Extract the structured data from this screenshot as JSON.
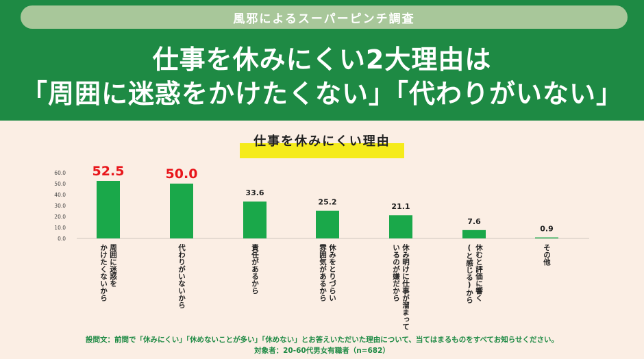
{
  "header": {
    "pill": "風邪によるスーパーピンチ調査",
    "headline_line1": "仕事を休みにくい2大理由は",
    "headline_line2": "「周囲に迷惑をかけたくない」「代わりがいない」"
  },
  "chart_data": {
    "type": "bar",
    "title": "仕事を休みにくい理由",
    "categories": [
      "周囲に迷惑を\nかけたくないから",
      "代わりがいないから",
      "責任があるから",
      "休みをとりづらい\n雰囲気があるから",
      "休み明けに仕事が溜まって\nいるのが嫌だから",
      "休むと評価に響く\n(と感じる)から",
      "その他"
    ],
    "values": [
      52.5,
      50.0,
      33.6,
      25.2,
      21.1,
      7.6,
      0.9
    ],
    "value_labels": [
      "52.5",
      "50.0",
      "33.6",
      "25.2",
      "21.1",
      "7.6",
      "0.9"
    ],
    "highlighted": [
      true,
      true,
      false,
      false,
      false,
      false,
      false
    ],
    "y_ticks": [
      "60.0",
      "50.0",
      "40.0",
      "30.0",
      "20.0",
      "10.0",
      "0.0"
    ],
    "ylim": [
      0,
      60
    ],
    "grid": false,
    "colors": {
      "bar": "#1aa84a",
      "highlight_label": "#e8161b",
      "label": "#222222"
    }
  },
  "footnote": {
    "question": "設問文：前問で「休みにくい」「休めないことが多い」「休めない」とお答えいただいた理由について、当てはまるものをすべてお知らせください。",
    "respondents": "対象者：20-60代男女有職者（n=682）"
  }
}
